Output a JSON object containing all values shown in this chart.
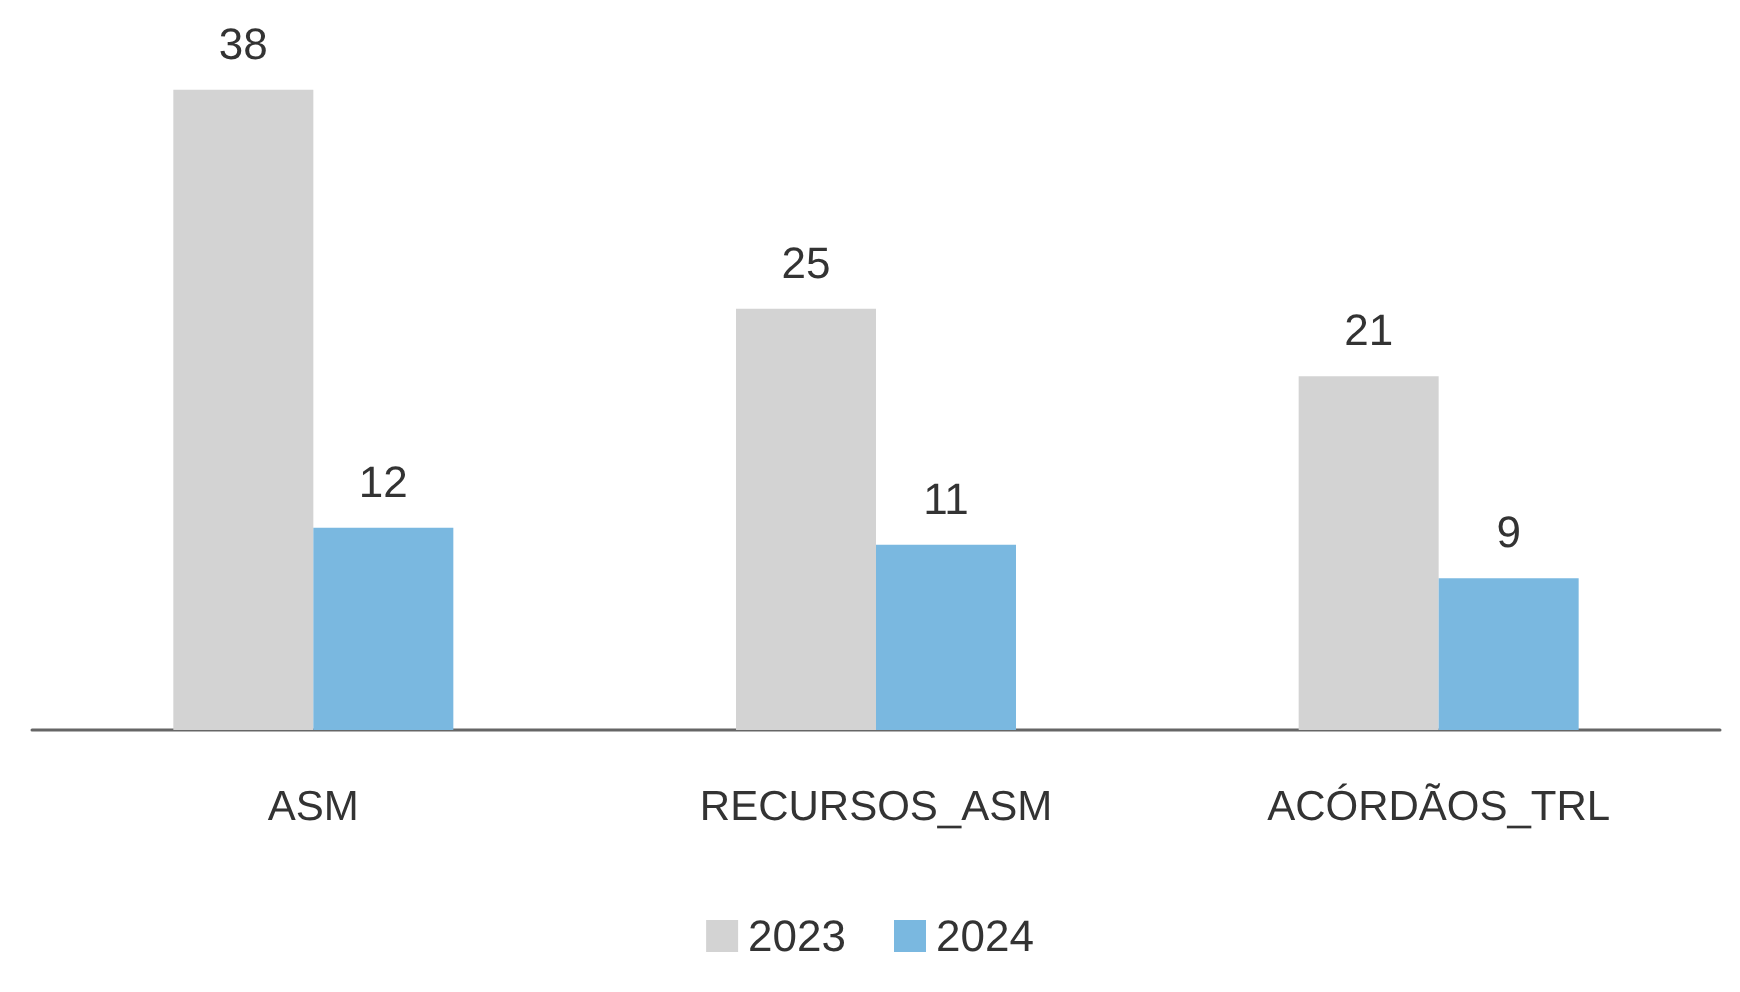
{
  "chart_data": {
    "type": "bar",
    "categories": [
      "ASM",
      "RECURSOS_ASM",
      "ACÓRDÃOS_TRL"
    ],
    "series": [
      {
        "name": "2023",
        "color": "#d3d3d3",
        "values": [
          38,
          25,
          21
        ]
      },
      {
        "name": "2024",
        "color": "#7ab8e0",
        "values": [
          12,
          11,
          9
        ]
      }
    ],
    "data_labels": true,
    "legend": "bottom",
    "tick_labels": "x"
  }
}
